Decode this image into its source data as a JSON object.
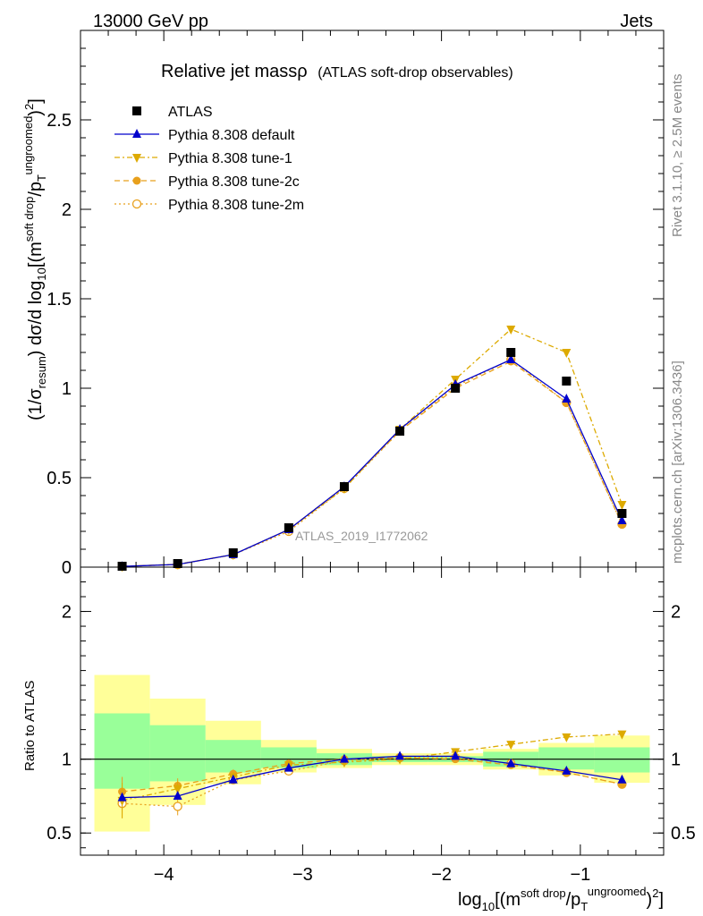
{
  "header": {
    "energy_label": "13000 GeV pp",
    "category_label": "Jets",
    "rivet_label": "Rivet 3.1.10, ≥ 2.5M events",
    "mcplots_label": "mcplots.cern.ch [arXiv:1306.3436]",
    "analysis_label": "ATLAS_2019_I1772062"
  },
  "title": {
    "main": "Relative jet massρ",
    "sub": "(ATLAS soft-drop observables)"
  },
  "axes": {
    "x_label": {
      "part1": "log",
      "sub1": "10",
      "part2": "[(m",
      "sup1": "soft drop",
      "part3": "/p",
      "sub2": "T",
      "sup2": "ungroomed",
      "part4": ")",
      "sup3": "2",
      "part5": "]"
    },
    "y_label": {
      "part1": "(1/σ",
      "sub1": "resum",
      "part2": ") dσ/d log",
      "sub2": "10",
      "part3": "[(m",
      "sup1": "soft drop",
      "part4": "/p",
      "sub3": "T",
      "sup2": "ungroomed",
      "part5": ")",
      "sup3": "2",
      "part6": "]"
    },
    "ratio_y_label": "Ratio to ATLAS"
  },
  "chart_data": {
    "type": "scatter",
    "x_range": [
      -4.6,
      -0.4
    ],
    "y_range_main": [
      0,
      3.0
    ],
    "y_range_ratio": [
      0.35,
      2.3
    ],
    "x_ticks": [
      {
        "value": -4,
        "label": "−4"
      },
      {
        "value": -3,
        "label": "−3"
      },
      {
        "value": -2,
        "label": "−2"
      },
      {
        "value": -1,
        "label": "−1"
      }
    ],
    "y_ticks_main": [
      {
        "value": 0,
        "label": "0"
      },
      {
        "value": 0.5,
        "label": "0.5"
      },
      {
        "value": 1,
        "label": "1"
      },
      {
        "value": 1.5,
        "label": "1.5"
      },
      {
        "value": 2,
        "label": "2"
      },
      {
        "value": 2.5,
        "label": "2.5"
      }
    ],
    "y_ticks_ratio": [
      {
        "value": 0.5,
        "label": "0.5"
      },
      {
        "value": 1,
        "label": "1"
      },
      {
        "value": 2,
        "label": "2"
      }
    ],
    "bin_edges": [
      -4.5,
      -4.1,
      -3.7,
      -3.3,
      -2.9,
      -2.5,
      -2.1,
      -1.7,
      -1.3,
      -0.9,
      -0.5
    ],
    "x": [
      -4.3,
      -3.9,
      -3.5,
      -3.1,
      -2.7,
      -2.3,
      -1.9,
      -1.5,
      -1.1,
      -0.7
    ],
    "series": [
      {
        "name": "ATLAS",
        "color": "#000000",
        "marker": "square",
        "values": [
          0.005,
          0.02,
          0.08,
          0.22,
          0.45,
          0.76,
          1.0,
          1.2,
          1.04,
          0.3
        ],
        "ratio": null
      },
      {
        "name": "Pythia 8.308 default",
        "color": "#0000cc",
        "marker": "triangle-up",
        "line": "solid",
        "values": [
          0.004,
          0.015,
          0.07,
          0.21,
          0.45,
          0.77,
          1.02,
          1.16,
          0.94,
          0.26
        ],
        "ratio": [
          0.74,
          0.75,
          0.86,
          0.94,
          1.0,
          1.02,
          1.02,
          0.97,
          0.92,
          0.86
        ]
      },
      {
        "name": "Pythia 8.308 tune-1",
        "color": "#ddaa00",
        "marker": "triangle-down",
        "line": "dashdot",
        "values": [
          0.004,
          0.016,
          0.07,
          0.21,
          0.44,
          0.77,
          1.05,
          1.33,
          1.2,
          0.35
        ],
        "ratio": [
          0.72,
          0.8,
          0.88,
          0.96,
          0.98,
          1.0,
          1.05,
          1.1,
          1.15,
          1.17
        ]
      },
      {
        "name": "Pythia 8.308 tune-2c",
        "color": "#e8a01c",
        "marker": "circle-filled",
        "line": "dashed",
        "values": [
          0.004,
          0.016,
          0.07,
          0.21,
          0.45,
          0.76,
          1.0,
          1.15,
          0.92,
          0.24
        ],
        "ratio": [
          0.78,
          0.82,
          0.9,
          0.97,
          1.0,
          1.01,
          1.0,
          0.96,
          0.91,
          0.83
        ]
      },
      {
        "name": "Pythia 8.308 tune-2m",
        "color": "#e8a01c",
        "marker": "circle-open",
        "line": "dotted",
        "values": [
          0.004,
          0.014,
          0.07,
          0.2,
          0.44,
          0.76,
          1.01,
          1.16,
          0.92,
          0.24
        ],
        "ratio": [
          0.7,
          0.68,
          0.86,
          0.92,
          0.99,
          1.01,
          1.01,
          0.97,
          0.91,
          0.83
        ]
      }
    ],
    "ratio_error_bars": {
      "tune-1": [
        0.12,
        0.05,
        0.03,
        0.02,
        0.01,
        0.01,
        0.01,
        0.01,
        0.01,
        0.01
      ],
      "tune-2c": [
        0.1,
        0.05,
        0.03,
        0.02,
        0.01,
        0.01,
        0.01,
        0.01,
        0.01,
        0.01
      ],
      "tune-2m": [
        0.1,
        0.06,
        0.02,
        0.02,
        0.01,
        0.01,
        0.01,
        0.01,
        0.01,
        0.01
      ]
    },
    "uncertainty_bands": {
      "yellow": [
        [
          0.51,
          1.57
        ],
        [
          0.69,
          1.41
        ],
        [
          0.83,
          1.26
        ],
        [
          0.91,
          1.13
        ],
        [
          0.94,
          1.07
        ],
        [
          0.96,
          1.04
        ],
        [
          0.96,
          1.04
        ],
        [
          0.93,
          1.07
        ],
        [
          0.89,
          1.11
        ],
        [
          0.84,
          1.16
        ]
      ],
      "green": [
        [
          0.8,
          1.31
        ],
        [
          0.85,
          1.23
        ],
        [
          0.91,
          1.13
        ],
        [
          0.94,
          1.08
        ],
        [
          0.96,
          1.04
        ],
        [
          0.98,
          1.02
        ],
        [
          0.98,
          1.02
        ],
        [
          0.95,
          1.05
        ],
        [
          0.93,
          1.08
        ],
        [
          0.91,
          1.08
        ]
      ]
    },
    "colors": {
      "band_yellow": "#ffff99",
      "band_green": "#99ff99"
    },
    "legend_position": "top-left"
  }
}
